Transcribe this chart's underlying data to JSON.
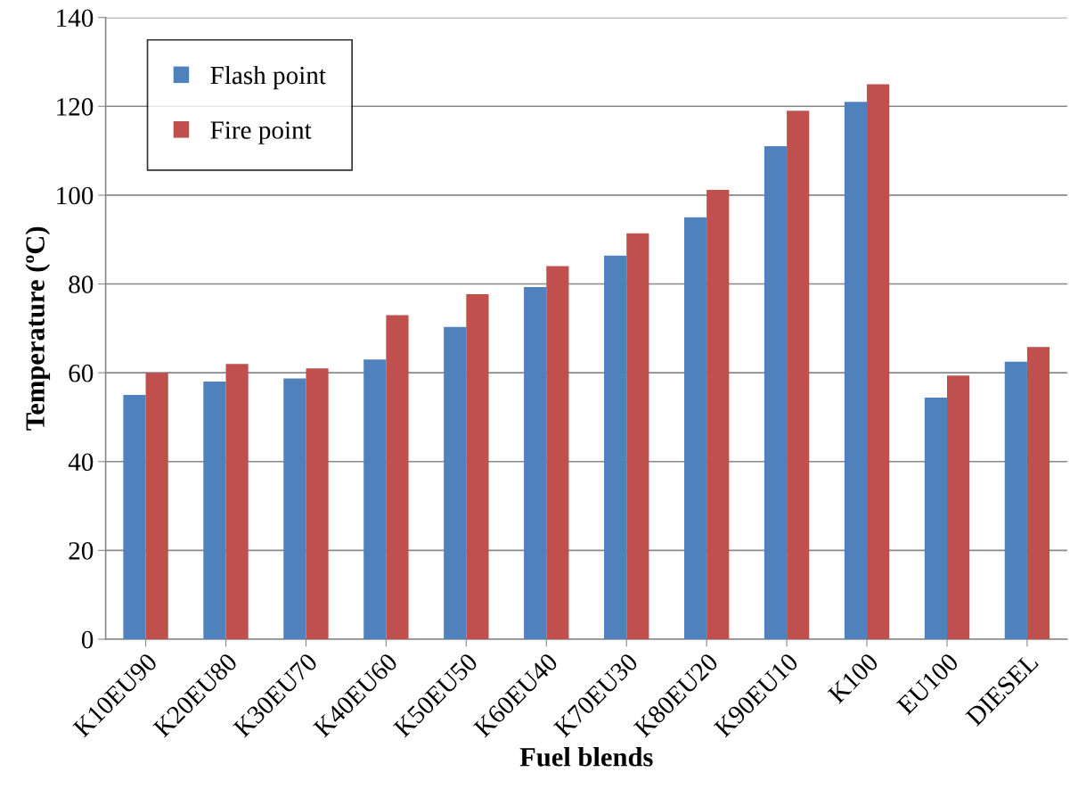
{
  "chart_data": {
    "type": "bar",
    "xlabel": "Fuel blends",
    "ylabel": "Temperature (ºC)",
    "categories": [
      "K10EU90",
      "K20EU80",
      "K30EU70",
      "K40EU60",
      "K50EU50",
      "K60EU40",
      "K70EU30",
      "K80EU20",
      "K90EU10",
      "K100",
      "EU100",
      "DIESEL"
    ],
    "series": [
      {
        "name": "Flash point",
        "color": "#4f81bd",
        "values": [
          55,
          58,
          58.7,
          63,
          70.3,
          79.3,
          86.4,
          95,
          111,
          121,
          54.4,
          62.5
        ]
      },
      {
        "name": "Fire point",
        "color": "#c0504d",
        "values": [
          60,
          62,
          61,
          73,
          77.7,
          84,
          91.4,
          101.2,
          119,
          125,
          59.4,
          65.8
        ]
      }
    ],
    "ylim": [
      0,
      140
    ],
    "yticks": [
      0,
      20,
      40,
      60,
      80,
      100,
      120,
      140
    ],
    "grid": "y",
    "legend": "top left"
  }
}
